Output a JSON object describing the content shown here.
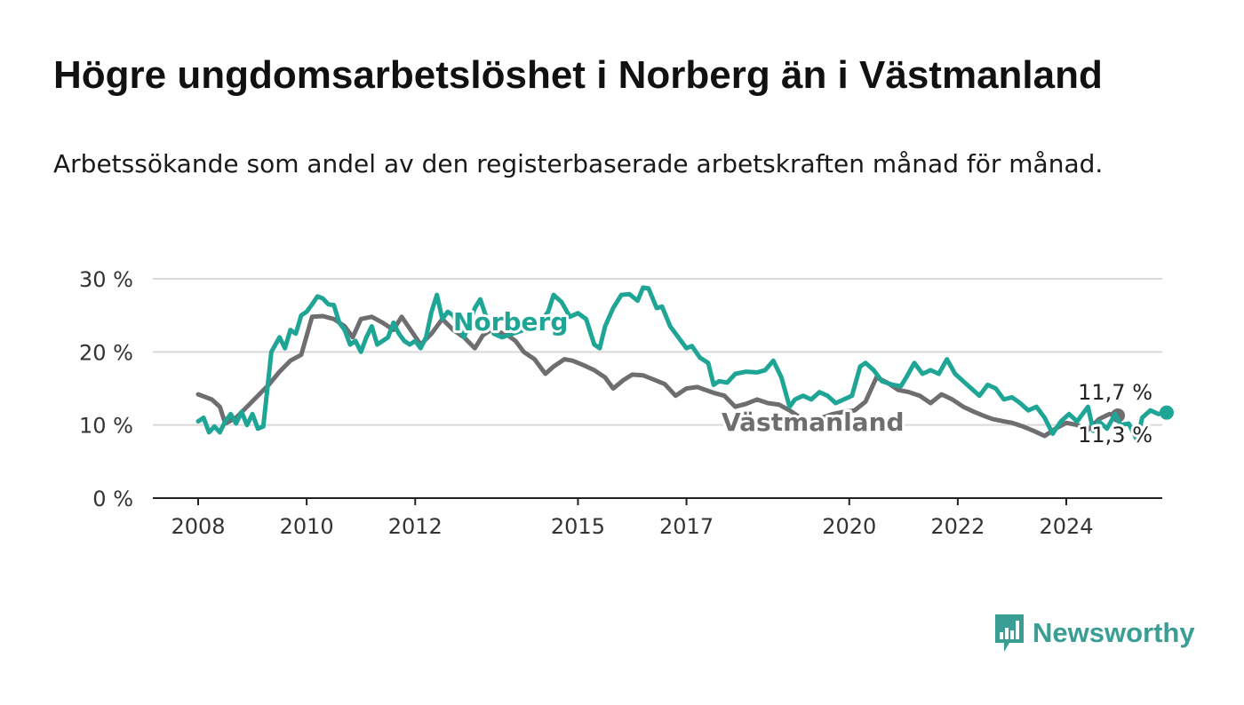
{
  "chart_data": {
    "type": "line",
    "title": "Högre ungdomsarbetslöshet i Norberg än i Västmanland",
    "subtitle": "Arbetssökande som andel av den registerbaserade arbetskraften månad för månad.",
    "ylim": [
      0,
      30
    ],
    "y_ticks": [
      "0 %",
      "10 %",
      "20 %",
      "30 %"
    ],
    "y_tick_values": [
      0,
      10,
      20,
      30
    ],
    "x_ticks": [
      "2008",
      "2010",
      "2012",
      "2015",
      "2017",
      "2020",
      "2022",
      "2024"
    ],
    "x_tick_values": [
      2008,
      2010,
      2012,
      2015,
      2017,
      2020,
      2022,
      2024
    ],
    "xlim": [
      2008,
      2025
    ],
    "grid": true,
    "series": [
      {
        "name": "Västmanland",
        "color": "#6e6e70",
        "end_label": "11,3 %",
        "points": [
          [
            2008.0,
            14.2
          ],
          [
            2008.25,
            13.5
          ],
          [
            2008.4,
            12.5
          ],
          [
            2008.5,
            10.2
          ],
          [
            2008.7,
            11.0
          ],
          [
            2008.9,
            12.5
          ],
          [
            2009.1,
            14.0
          ],
          [
            2009.3,
            15.5
          ],
          [
            2009.5,
            17.3
          ],
          [
            2009.7,
            18.8
          ],
          [
            2009.9,
            19.6
          ],
          [
            2010.1,
            24.8
          ],
          [
            2010.3,
            24.9
          ],
          [
            2010.5,
            24.5
          ],
          [
            2010.7,
            23.5
          ],
          [
            2010.85,
            22.0
          ],
          [
            2011.0,
            24.5
          ],
          [
            2011.2,
            24.8
          ],
          [
            2011.4,
            24.0
          ],
          [
            2011.6,
            23.0
          ],
          [
            2011.75,
            24.8
          ],
          [
            2011.9,
            23.2
          ],
          [
            2012.1,
            21.0
          ],
          [
            2012.3,
            22.5
          ],
          [
            2012.5,
            24.5
          ],
          [
            2012.7,
            23.0
          ],
          [
            2012.9,
            22.0
          ],
          [
            2013.1,
            20.5
          ],
          [
            2013.25,
            22.3
          ],
          [
            2013.4,
            23.0
          ],
          [
            2013.55,
            22.7
          ],
          [
            2013.7,
            22.3
          ],
          [
            2013.85,
            21.5
          ],
          [
            2014.0,
            20.0
          ],
          [
            2014.2,
            19.0
          ],
          [
            2014.4,
            17.0
          ],
          [
            2014.55,
            18.0
          ],
          [
            2014.75,
            19.0
          ],
          [
            2014.9,
            18.8
          ],
          [
            2015.1,
            18.2
          ],
          [
            2015.3,
            17.5
          ],
          [
            2015.5,
            16.5
          ],
          [
            2015.65,
            15.0
          ],
          [
            2015.85,
            16.2
          ],
          [
            2016.0,
            16.9
          ],
          [
            2016.2,
            16.8
          ],
          [
            2016.4,
            16.2
          ],
          [
            2016.6,
            15.6
          ],
          [
            2016.8,
            14.0
          ],
          [
            2017.0,
            15.0
          ],
          [
            2017.2,
            15.2
          ],
          [
            2017.35,
            14.8
          ],
          [
            2017.5,
            14.4
          ],
          [
            2017.7,
            14.0
          ],
          [
            2017.9,
            12.5
          ],
          [
            2018.1,
            12.9
          ],
          [
            2018.3,
            13.5
          ],
          [
            2018.5,
            13.0
          ],
          [
            2018.7,
            12.8
          ],
          [
            2018.9,
            12.0
          ],
          [
            2019.1,
            11.0
          ],
          [
            2019.3,
            10.5
          ],
          [
            2019.5,
            11.0
          ],
          [
            2019.7,
            11.5
          ],
          [
            2019.9,
            11.8
          ],
          [
            2020.1,
            12.0
          ],
          [
            2020.3,
            13.2
          ],
          [
            2020.5,
            16.5
          ],
          [
            2020.7,
            15.8
          ],
          [
            2020.9,
            14.8
          ],
          [
            2021.1,
            14.5
          ],
          [
            2021.3,
            14.0
          ],
          [
            2021.5,
            13.0
          ],
          [
            2021.7,
            14.2
          ],
          [
            2021.9,
            13.5
          ],
          [
            2022.1,
            12.5
          ],
          [
            2022.3,
            11.8
          ],
          [
            2022.5,
            11.2
          ],
          [
            2022.65,
            10.8
          ],
          [
            2022.85,
            10.5
          ],
          [
            2023.0,
            10.3
          ],
          [
            2023.2,
            9.8
          ],
          [
            2023.4,
            9.2
          ],
          [
            2023.6,
            8.5
          ],
          [
            2023.8,
            9.5
          ],
          [
            2024.0,
            10.3
          ],
          [
            2024.2,
            10.0
          ],
          [
            2024.4,
            9.3
          ],
          [
            2024.6,
            10.8
          ],
          [
            2024.8,
            11.5
          ],
          [
            2024.95,
            11.3
          ]
        ]
      },
      {
        "name": "Norberg",
        "color": "#1ea596",
        "end_label": "11,7 %",
        "points": [
          [
            2008.0,
            10.5
          ],
          [
            2008.1,
            11.0
          ],
          [
            2008.2,
            9.0
          ],
          [
            2008.3,
            9.8
          ],
          [
            2008.4,
            9.0
          ],
          [
            2008.5,
            10.5
          ],
          [
            2008.6,
            11.5
          ],
          [
            2008.7,
            10.2
          ],
          [
            2008.8,
            11.8
          ],
          [
            2008.9,
            10.0
          ],
          [
            2009.0,
            11.5
          ],
          [
            2009.1,
            9.5
          ],
          [
            2009.2,
            9.8
          ],
          [
            2009.35,
            20.0
          ],
          [
            2009.5,
            22.0
          ],
          [
            2009.6,
            20.5
          ],
          [
            2009.7,
            23.0
          ],
          [
            2009.8,
            22.5
          ],
          [
            2009.9,
            25.0
          ],
          [
            2010.0,
            25.5
          ],
          [
            2010.1,
            26.5
          ],
          [
            2010.2,
            27.6
          ],
          [
            2010.3,
            27.3
          ],
          [
            2010.4,
            26.5
          ],
          [
            2010.5,
            26.4
          ],
          [
            2010.6,
            24.0
          ],
          [
            2010.7,
            23.0
          ],
          [
            2010.8,
            21.0
          ],
          [
            2010.9,
            21.5
          ],
          [
            2011.0,
            20.0
          ],
          [
            2011.1,
            22.0
          ],
          [
            2011.2,
            23.5
          ],
          [
            2011.3,
            21.0
          ],
          [
            2011.4,
            21.5
          ],
          [
            2011.5,
            22.0
          ],
          [
            2011.6,
            24.0
          ],
          [
            2011.7,
            22.5
          ],
          [
            2011.8,
            21.5
          ],
          [
            2011.9,
            21.0
          ],
          [
            2012.0,
            21.5
          ],
          [
            2012.1,
            20.5
          ],
          [
            2012.2,
            22.0
          ],
          [
            2012.3,
            25.5
          ],
          [
            2012.4,
            27.8
          ],
          [
            2012.5,
            24.5
          ],
          [
            2012.6,
            25.5
          ],
          [
            2012.7,
            25.0
          ],
          [
            2012.8,
            23.5
          ],
          [
            2012.9,
            22.0
          ],
          [
            2013.0,
            24.0
          ],
          [
            2013.1,
            26.0
          ],
          [
            2013.2,
            27.2
          ],
          [
            2013.3,
            25.0
          ],
          [
            2013.45,
            22.5
          ],
          [
            2013.6,
            22.0
          ],
          [
            2014.0,
            23.0
          ],
          [
            2014.3,
            24.0
          ],
          [
            2014.45,
            25.5
          ],
          [
            2014.55,
            27.8
          ],
          [
            2014.7,
            26.8
          ],
          [
            2014.85,
            24.8
          ],
          [
            2015.0,
            25.3
          ],
          [
            2015.15,
            24.5
          ],
          [
            2015.3,
            21.0
          ],
          [
            2015.4,
            20.5
          ],
          [
            2015.5,
            23.5
          ],
          [
            2015.65,
            26.0
          ],
          [
            2015.8,
            27.8
          ],
          [
            2015.95,
            27.9
          ],
          [
            2016.1,
            27.0
          ],
          [
            2016.2,
            28.8
          ],
          [
            2016.3,
            28.7
          ],
          [
            2016.45,
            26.0
          ],
          [
            2016.55,
            26.2
          ],
          [
            2016.7,
            23.5
          ],
          [
            2016.85,
            22.0
          ],
          [
            2017.0,
            20.5
          ],
          [
            2017.1,
            20.8
          ],
          [
            2017.25,
            19.2
          ],
          [
            2017.4,
            18.5
          ],
          [
            2017.5,
            15.5
          ],
          [
            2017.6,
            16.0
          ],
          [
            2017.75,
            15.8
          ],
          [
            2017.9,
            17.0
          ],
          [
            2018.1,
            17.3
          ],
          [
            2018.3,
            17.2
          ],
          [
            2018.45,
            17.5
          ],
          [
            2018.6,
            18.8
          ],
          [
            2018.75,
            16.5
          ],
          [
            2018.9,
            12.5
          ],
          [
            2019.0,
            13.5
          ],
          [
            2019.15,
            14.0
          ],
          [
            2019.3,
            13.5
          ],
          [
            2019.45,
            14.5
          ],
          [
            2019.6,
            14.0
          ],
          [
            2019.75,
            13.0
          ],
          [
            2019.9,
            13.5
          ],
          [
            2020.05,
            14.0
          ],
          [
            2020.2,
            18.0
          ],
          [
            2020.3,
            18.5
          ],
          [
            2020.45,
            17.5
          ],
          [
            2020.6,
            16.0
          ],
          [
            2020.8,
            15.5
          ],
          [
            2020.95,
            15.3
          ],
          [
            2021.05,
            16.5
          ],
          [
            2021.2,
            18.5
          ],
          [
            2021.35,
            17.0
          ],
          [
            2021.5,
            17.5
          ],
          [
            2021.65,
            17.0
          ],
          [
            2021.8,
            19.0
          ],
          [
            2021.95,
            17.0
          ],
          [
            2022.1,
            16.0
          ],
          [
            2022.25,
            15.0
          ],
          [
            2022.4,
            14.0
          ],
          [
            2022.55,
            15.5
          ],
          [
            2022.7,
            15.0
          ],
          [
            2022.85,
            13.5
          ],
          [
            2023.0,
            13.8
          ],
          [
            2023.15,
            13.0
          ],
          [
            2023.3,
            12.0
          ],
          [
            2023.45,
            12.5
          ],
          [
            2023.6,
            11.0
          ],
          [
            2023.75,
            8.8
          ],
          [
            2023.9,
            10.5
          ],
          [
            2024.05,
            11.5
          ],
          [
            2024.2,
            10.5
          ],
          [
            2024.3,
            11.5
          ],
          [
            2024.4,
            12.5
          ],
          [
            2024.5,
            9.2
          ],
          [
            2024.6,
            10.5
          ],
          [
            2024.75,
            9.5
          ],
          [
            2024.9,
            11.5
          ],
          [
            2025.0,
            10.0
          ],
          [
            2025.15,
            10.2
          ],
          [
            2025.3,
            8.0
          ],
          [
            2025.4,
            11.0
          ],
          [
            2025.55,
            12.0
          ],
          [
            2025.7,
            11.5
          ],
          [
            2025.85,
            11.7
          ]
        ]
      }
    ]
  },
  "branding": {
    "logo_text": "Newsworthy",
    "logo_color": "#3a9e94"
  }
}
